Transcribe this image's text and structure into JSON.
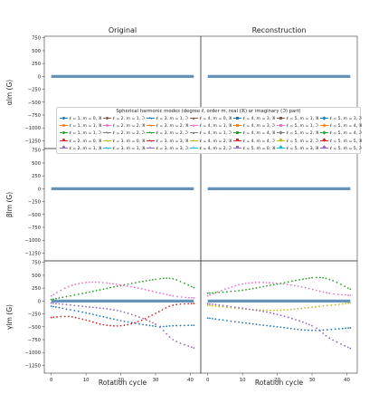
{
  "chart_data": [
    {
      "type": "line",
      "panel": "alpha-original",
      "title": "Original",
      "ylabel": "α_lm (G)",
      "ylim": [
        -1400,
        780
      ],
      "yticks": [
        750,
        500,
        250,
        0,
        -250,
        -500,
        -750,
        -1000,
        -1250
      ],
      "x": [
        0,
        41
      ],
      "series_summary": "all 35 modes ≈ 0",
      "values": [
        0,
        0
      ]
    },
    {
      "type": "line",
      "panel": "alpha-reconstruction",
      "title": "Reconstruction",
      "ylim": [
        -1400,
        780
      ],
      "x": [
        0,
        41
      ],
      "values": [
        0,
        0
      ]
    },
    {
      "type": "line",
      "panel": "beta-original",
      "ylabel": "β_lm (G)",
      "ylim": [
        -1400,
        780
      ],
      "yticks": [
        750,
        500,
        250,
        0,
        -250,
        -500,
        -750,
        -1000,
        -1250
      ],
      "x": [
        0,
        41
      ],
      "values": [
        0,
        0
      ]
    },
    {
      "type": "line",
      "panel": "beta-reconstruction",
      "ylim": [
        -1400,
        780
      ],
      "x": [
        0,
        41
      ],
      "values": [
        0,
        0
      ]
    },
    {
      "type": "line",
      "panel": "gamma-original",
      "ylabel": "γ_lm (G)",
      "xlabel": "Rotation cycle",
      "xticks": [
        0,
        10,
        20,
        30,
        40
      ],
      "xlim": [
        -2,
        43
      ],
      "ylim": [
        -1400,
        780
      ],
      "yticks": [
        750,
        500,
        250,
        0,
        -250,
        -500,
        -750,
        -1000,
        -1250
      ],
      "series": [
        {
          "name": "ℓ=2, m=1, ℑ",
          "color": "#2ca02c",
          "points": [
            [
              0,
              30
            ],
            [
              10,
              160
            ],
            [
              20,
              300
            ],
            [
              30,
              420
            ],
            [
              35,
              430
            ],
            [
              41,
              260
            ]
          ]
        },
        {
          "name": "ℓ=2, m=1, ℜ",
          "color": "#e377c2",
          "points": [
            [
              0,
              100
            ],
            [
              5,
              280
            ],
            [
              10,
              360
            ],
            [
              16,
              350
            ],
            [
              25,
              250
            ],
            [
              35,
              100
            ],
            [
              41,
              60
            ]
          ]
        },
        {
          "name": "ℓ=2, m=2, ℜ",
          "color": "#d62728",
          "points": [
            [
              0,
              -320
            ],
            [
              5,
              -300
            ],
            [
              10,
              -370
            ],
            [
              15,
              -460
            ],
            [
              20,
              -480
            ],
            [
              25,
              -400
            ],
            [
              30,
              -240
            ],
            [
              35,
              -80
            ],
            [
              41,
              -50
            ]
          ]
        },
        {
          "name": "ℓ=1, m=0, ℜ",
          "color": "#1f77b4",
          "points": [
            [
              0,
              -100
            ],
            [
              10,
              -230
            ],
            [
              20,
              -380
            ],
            [
              30,
              -490
            ],
            [
              35,
              -480
            ],
            [
              41,
              -470
            ]
          ]
        },
        {
          "name": "ℓ=2, m=2, ℑ",
          "color": "#9467bd",
          "points": [
            [
              0,
              -40
            ],
            [
              10,
              -110
            ],
            [
              20,
              -200
            ],
            [
              30,
              -450
            ],
            [
              35,
              -750
            ],
            [
              41,
              -910
            ]
          ]
        },
        {
          "name": "other modes",
          "color": "#6492b8",
          "points": [
            [
              0,
              0
            ],
            [
              41,
              0
            ]
          ]
        }
      ]
    },
    {
      "type": "line",
      "panel": "gamma-reconstruction",
      "xlabel": "Rotation cycle",
      "xticks": [
        0,
        10,
        20,
        30,
        40
      ],
      "xlim": [
        -2,
        43
      ],
      "ylim": [
        -1400,
        780
      ],
      "series": [
        {
          "name": "ℓ=2, m=1, ℑ",
          "color": "#2ca02c",
          "points": [
            [
              0,
              150
            ],
            [
              10,
              210
            ],
            [
              20,
              330
            ],
            [
              30,
              450
            ],
            [
              35,
              420
            ],
            [
              41,
              230
            ]
          ]
        },
        {
          "name": "ℓ=2, m=1, ℜ",
          "color": "#e377c2",
          "points": [
            [
              0,
              100
            ],
            [
              5,
              230
            ],
            [
              10,
              330
            ],
            [
              16,
              360
            ],
            [
              25,
              300
            ],
            [
              35,
              150
            ],
            [
              41,
              110
            ]
          ]
        },
        {
          "name": "ℓ=2, m=0, ℜ",
          "color": "#bcbd22",
          "points": [
            [
              0,
              -80
            ],
            [
              10,
              -150
            ],
            [
              20,
              -180
            ],
            [
              30,
              -120
            ],
            [
              41,
              -40
            ]
          ]
        },
        {
          "name": "ℓ=1, m=0, ℜ",
          "color": "#1f77b4",
          "points": [
            [
              0,
              -330
            ],
            [
              10,
              -420
            ],
            [
              20,
              -500
            ],
            [
              30,
              -570
            ],
            [
              41,
              -520
            ]
          ]
        },
        {
          "name": "ℓ=2, m=2, ℑ",
          "color": "#9467bd",
          "points": [
            [
              0,
              -50
            ],
            [
              10,
              -140
            ],
            [
              20,
              -260
            ],
            [
              30,
              -480
            ],
            [
              35,
              -720
            ],
            [
              41,
              -920
            ]
          ]
        },
        {
          "name": "other modes",
          "color": "#6492b8",
          "points": [
            [
              0,
              0
            ],
            [
              41,
              0
            ]
          ]
        }
      ]
    }
  ],
  "legend": {
    "title": "Spherical harmonic modes (degree ℓ, order m, real (ℜ) or imaginary (ℑ) part)",
    "items": [
      {
        "label": "ℓ = 1, m = 0, ℜ",
        "color": "#1f77b4",
        "marker": "circle"
      },
      {
        "label": "ℓ = 1, m = 1, ℜ",
        "color": "#ff7f0e",
        "marker": "circle"
      },
      {
        "label": "ℓ = 1, m = 1, ℑ",
        "color": "#2ca02c",
        "marker": "circle"
      },
      {
        "label": "ℓ = 2, m = 0, ℜ",
        "color": "#d62728",
        "marker": "circle"
      },
      {
        "label": "ℓ = 2, m = 1, ℜ",
        "color": "#9467bd",
        "marker": "circle"
      },
      {
        "label": "ℓ = 2, m = 1, ℑ",
        "color": "#8c564b",
        "marker": "circle"
      },
      {
        "label": "ℓ = 2, m = 2, ℜ",
        "color": "#e377c2",
        "marker": "circle"
      },
      {
        "label": "ℓ = 2, m = 2, ℑ",
        "color": "#7f7f7f",
        "marker": "x"
      },
      {
        "label": "ℓ = 3, m = 0, ℜ",
        "color": "#bcbd22",
        "marker": "x"
      },
      {
        "label": "ℓ = 3, m = 1, ℜ",
        "color": "#17becf",
        "marker": "x"
      },
      {
        "label": "ℓ = 3, m = 1, ℑ",
        "color": "#1f77b4",
        "marker": "x"
      },
      {
        "label": "ℓ = 3, m = 2, ℜ",
        "color": "#ff7f0e",
        "marker": "x"
      },
      {
        "label": "ℓ = 3, m = 2, ℑ",
        "color": "#2ca02c",
        "marker": "x"
      },
      {
        "label": "ℓ = 3, m = 3, ℜ",
        "color": "#d62728",
        "marker": "x"
      },
      {
        "label": "ℓ = 3, m = 3, ℑ",
        "color": "#9467bd",
        "marker": "triangle"
      },
      {
        "label": "ℓ = 4, m = 0, ℜ",
        "color": "#8c564b",
        "marker": "triangle"
      },
      {
        "label": "ℓ = 4, m = 1, ℜ",
        "color": "#e377c2",
        "marker": "triangle"
      },
      {
        "label": "ℓ = 4, m = 1, ℑ",
        "color": "#7f7f7f",
        "marker": "triangle"
      },
      {
        "label": "ℓ = 4, m = 2, ℜ",
        "color": "#bcbd22",
        "marker": "triangle"
      },
      {
        "label": "ℓ = 4, m = 2, ℑ",
        "color": "#17becf",
        "marker": "triangle"
      },
      {
        "label": "ℓ = 4, m = 3, ℜ",
        "color": "#1f77b4",
        "marker": "square"
      },
      {
        "label": "ℓ = 4, m = 3, ℑ",
        "color": "#ff7f0e",
        "marker": "square"
      },
      {
        "label": "ℓ = 4, m = 4, ℜ",
        "color": "#2ca02c",
        "marker": "square"
      },
      {
        "label": "ℓ = 4, m = 4, ℑ",
        "color": "#d62728",
        "marker": "square"
      },
      {
        "label": "ℓ = 5, m = 0, ℜ",
        "color": "#9467bd",
        "marker": "square"
      },
      {
        "label": "ℓ = 5, m = 1, ℜ",
        "color": "#8c564b",
        "marker": "square"
      },
      {
        "label": "ℓ = 5, m = 1, ℑ",
        "color": "#e377c2",
        "marker": "square"
      },
      {
        "label": "ℓ = 5, m = 2, ℜ",
        "color": "#7f7f7f",
        "marker": "star"
      },
      {
        "label": "ℓ = 5, m = 2, ℑ",
        "color": "#bcbd22",
        "marker": "star"
      },
      {
        "label": "ℓ = 5, m = 3, ℜ",
        "color": "#17becf",
        "marker": "star"
      },
      {
        "label": "ℓ = 5, m = 3, ℑ",
        "color": "#1f77b4",
        "marker": "star"
      },
      {
        "label": "ℓ = 5, m = 4, ℜ",
        "color": "#ff7f0e",
        "marker": "star"
      },
      {
        "label": "ℓ = 5, m = 4, ℑ",
        "color": "#2ca02c",
        "marker": "star"
      },
      {
        "label": "ℓ = 5, m = 5, ℜ",
        "color": "#d62728",
        "marker": "star"
      },
      {
        "label": "ℓ = 5, m = 5, ℑ",
        "color": "#9467bd",
        "marker": "star"
      }
    ]
  },
  "labels": {
    "col_left_title": "Original",
    "col_right_title": "Reconstruction",
    "ylabel_alpha": "αlm (G)",
    "ylabel_beta": "βlm (G)",
    "ylabel_gamma": "γlm (G)",
    "xlabel": "Rotation cycle",
    "ytick_labels": [
      "750",
      "500",
      "250",
      "0",
      "−250",
      "−500",
      "−750",
      "−1000",
      "−1250"
    ],
    "xtick_labels": [
      "0",
      "10",
      "20",
      "30",
      "40"
    ]
  },
  "style": {
    "zero_line_color": "#6492b8",
    "axis_color": "#333333"
  }
}
